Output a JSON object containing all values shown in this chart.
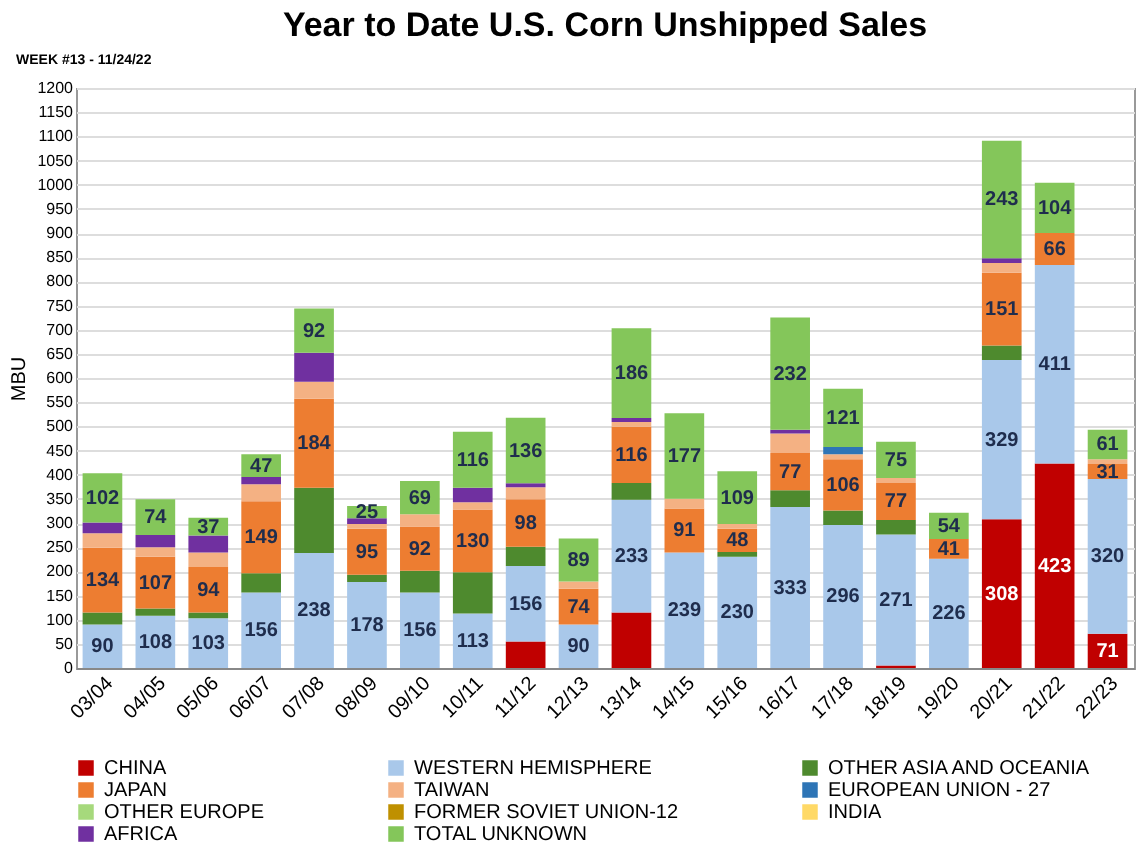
{
  "chart_data": {
    "type": "bar",
    "stacked": true,
    "title": "Year to Date U.S. Corn Unshipped Sales",
    "annotations": [
      "WEEK #13 - 11/24/22"
    ],
    "ylabel": "MBU",
    "categories": [
      "03/04",
      "04/05",
      "05/06",
      "06/07",
      "07/08",
      "08/09",
      "09/10",
      "10/11",
      "11/12",
      "12/13",
      "13/14",
      "14/15",
      "15/16",
      "16/17",
      "17/18",
      "18/19",
      "19/20",
      "20/21",
      "21/22",
      "22/23"
    ],
    "ylim": [
      0,
      1200
    ],
    "yticks": [
      0,
      50,
      100,
      150,
      200,
      250,
      300,
      350,
      400,
      450,
      500,
      550,
      600,
      650,
      700,
      750,
      800,
      850,
      900,
      950,
      1000,
      1050,
      1100,
      1150,
      1200
    ],
    "grid": "y",
    "legend": "bottom",
    "series": [
      {
        "name": "CHINA",
        "color": "#c00000",
        "values": [
          null,
          null,
          null,
          null,
          null,
          null,
          null,
          null,
          55,
          null,
          115,
          null,
          null,
          null,
          null,
          5,
          null,
          308,
          423,
          71
        ],
        "value_labels": [
          null,
          null,
          null,
          null,
          null,
          null,
          null,
          null,
          null,
          null,
          null,
          null,
          null,
          null,
          null,
          null,
          null,
          "308",
          "423",
          "71"
        ]
      },
      {
        "name": "WESTERN HEMISPHERE",
        "color": "#a9c8ea",
        "values": [
          90,
          108,
          103,
          156,
          238,
          178,
          156,
          113,
          156,
          90,
          233,
          239,
          230,
          333,
          296,
          271,
          226,
          329,
          411,
          320
        ],
        "value_labels": [
          "90",
          "108",
          "103",
          "156",
          "238",
          "178",
          "156",
          "113",
          "156",
          "90",
          "233",
          "239",
          "230",
          "333",
          "296",
          "271",
          "226",
          "329",
          "411",
          "320"
        ]
      },
      {
        "name": "OTHER ASIA AND OCEANIA",
        "color": "#4e8a2e",
        "values": [
          25,
          15,
          12,
          40,
          135,
          15,
          45,
          85,
          40,
          null,
          35,
          null,
          10,
          35,
          30,
          30,
          null,
          30,
          null,
          null
        ]
      },
      {
        "name": "JAPAN",
        "color": "#ed7d31",
        "values": [
          134,
          107,
          94,
          149,
          184,
          95,
          92,
          130,
          98,
          74,
          116,
          91,
          48,
          77,
          106,
          77,
          41,
          151,
          66,
          31
        ],
        "value_labels": [
          "134",
          "107",
          "94",
          "149",
          "184",
          "95",
          "92",
          "130",
          "98",
          "74",
          "116",
          "91",
          "48",
          "77",
          "106",
          "77",
          "41",
          "151",
          "66",
          "31"
        ]
      },
      {
        "name": "TAIWAN",
        "color": "#f4b183",
        "values": [
          30,
          20,
          30,
          35,
          35,
          10,
          25,
          15,
          25,
          15,
          10,
          20,
          10,
          40,
          10,
          10,
          null,
          20,
          null,
          10
        ]
      },
      {
        "name": "EUROPEAN UNION - 27",
        "color": "#2e75b6",
        "values": [
          null,
          null,
          null,
          null,
          null,
          null,
          null,
          null,
          null,
          null,
          null,
          null,
          null,
          null,
          15,
          null,
          null,
          null,
          null,
          null
        ]
      },
      {
        "name": "OTHER EUROPE",
        "color": "#a6d97c",
        "values": [
          null,
          null,
          null,
          null,
          null,
          null,
          null,
          null,
          null,
          null,
          null,
          null,
          null,
          null,
          null,
          null,
          null,
          null,
          null,
          null
        ]
      },
      {
        "name": "FORMER SOVIET UNION-12",
        "color": "#bf9000",
        "values": [
          null,
          null,
          null,
          null,
          null,
          null,
          null,
          null,
          null,
          null,
          null,
          null,
          null,
          null,
          null,
          null,
          null,
          null,
          null,
          null
        ]
      },
      {
        "name": "INDIA",
        "color": "#ffd966",
        "values": [
          null,
          null,
          null,
          null,
          null,
          null,
          null,
          null,
          null,
          null,
          null,
          null,
          null,
          null,
          null,
          null,
          null,
          null,
          null,
          null
        ]
      },
      {
        "name": "AFRICA",
        "color": "#7030a0",
        "values": [
          22,
          25,
          35,
          15,
          60,
          12,
          null,
          30,
          8,
          null,
          8,
          null,
          null,
          8,
          null,
          null,
          null,
          10,
          null,
          null
        ]
      },
      {
        "name": "TOTAL UNKNOWN",
        "color": "#84c65a",
        "values": [
          102,
          74,
          37,
          47,
          92,
          25,
          69,
          116,
          136,
          89,
          186,
          177,
          109,
          232,
          121,
          75,
          54,
          243,
          104,
          61
        ],
        "value_labels": [
          "102",
          "74",
          "37",
          "47",
          "92",
          "25",
          "69",
          "116",
          "136",
          "89",
          "186",
          "177",
          "109",
          "232",
          "121",
          "75",
          "54",
          "243",
          "104",
          "61"
        ]
      }
    ]
  }
}
